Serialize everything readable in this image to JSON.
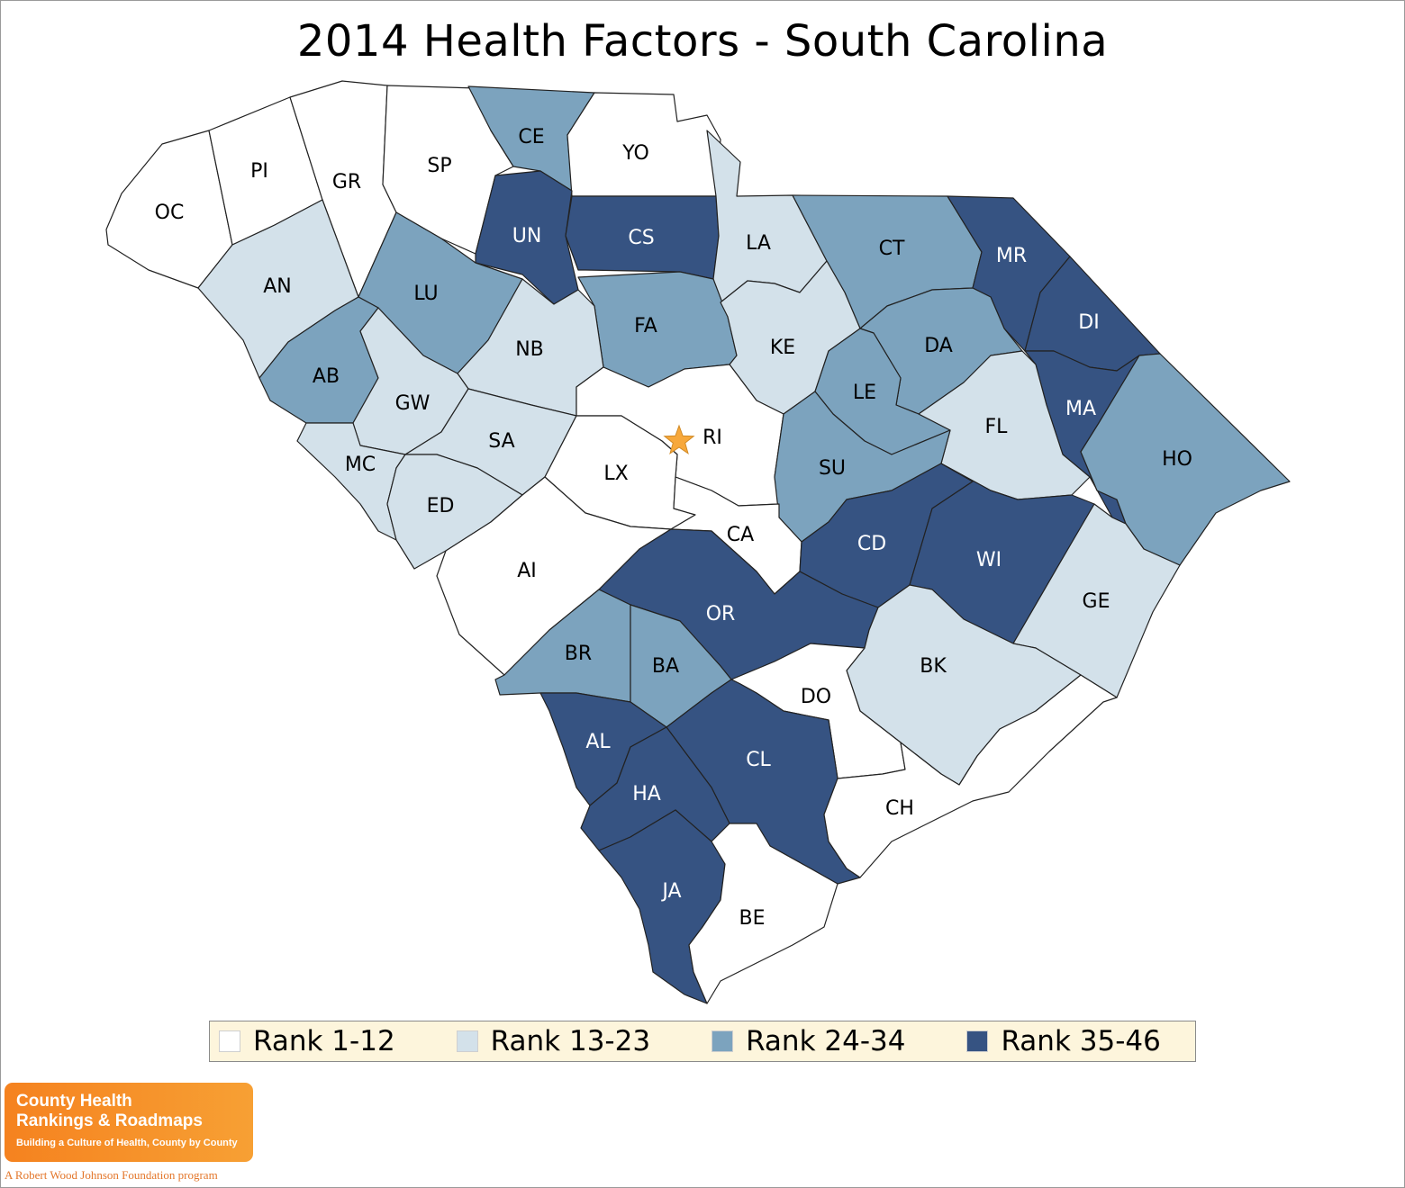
{
  "title": "2014 Health Factors - South Carolina",
  "colors": {
    "rank_1": "#ffffff",
    "rank_2": "#d3e1ea",
    "rank_3": "#7ca3be",
    "rank_4": "#365382",
    "border": "#222222",
    "star": "#f7a83b"
  },
  "legend": [
    {
      "label": "Rank 1-12",
      "color": "#ffffff"
    },
    {
      "label": "Rank 13-23",
      "color": "#d3e1ea"
    },
    {
      "label": "Rank 24-34",
      "color": "#7ca3be"
    },
    {
      "label": "Rank 35-46",
      "color": "#365382"
    }
  ],
  "capital": {
    "county": "RI",
    "marker": "star-icon"
  },
  "counties": [
    {
      "code": "OC",
      "tier": 1
    },
    {
      "code": "PI",
      "tier": 1
    },
    {
      "code": "GR",
      "tier": 1
    },
    {
      "code": "SP",
      "tier": 1
    },
    {
      "code": "CE",
      "tier": 3
    },
    {
      "code": "YO",
      "tier": 1
    },
    {
      "code": "UN",
      "tier": 4
    },
    {
      "code": "CS",
      "tier": 4
    },
    {
      "code": "LA",
      "tier": 2
    },
    {
      "code": "CT",
      "tier": 3
    },
    {
      "code": "MR",
      "tier": 4
    },
    {
      "code": "AN",
      "tier": 2
    },
    {
      "code": "LU",
      "tier": 3
    },
    {
      "code": "FA",
      "tier": 3
    },
    {
      "code": "KE",
      "tier": 2
    },
    {
      "code": "DI",
      "tier": 4
    },
    {
      "code": "DA",
      "tier": 3
    },
    {
      "code": "NB",
      "tier": 2
    },
    {
      "code": "AB",
      "tier": 3
    },
    {
      "code": "GW",
      "tier": 2
    },
    {
      "code": "LE",
      "tier": 3
    },
    {
      "code": "MA",
      "tier": 4
    },
    {
      "code": "FL",
      "tier": 2
    },
    {
      "code": "RI",
      "tier": 1
    },
    {
      "code": "SA",
      "tier": 2
    },
    {
      "code": "MC",
      "tier": 2
    },
    {
      "code": "HO",
      "tier": 3
    },
    {
      "code": "LX",
      "tier": 1
    },
    {
      "code": "SU",
      "tier": 3
    },
    {
      "code": "ED",
      "tier": 2
    },
    {
      "code": "CA",
      "tier": 1
    },
    {
      "code": "CD",
      "tier": 4
    },
    {
      "code": "WI",
      "tier": 4
    },
    {
      "code": "AI",
      "tier": 1
    },
    {
      "code": "GE",
      "tier": 2
    },
    {
      "code": "OR",
      "tier": 4
    },
    {
      "code": "BR",
      "tier": 3
    },
    {
      "code": "BA",
      "tier": 3
    },
    {
      "code": "BK",
      "tier": 2
    },
    {
      "code": "DO",
      "tier": 1
    },
    {
      "code": "AL",
      "tier": 4
    },
    {
      "code": "CL",
      "tier": 4
    },
    {
      "code": "HA",
      "tier": 4
    },
    {
      "code": "CH",
      "tier": 1
    },
    {
      "code": "JA",
      "tier": 4
    },
    {
      "code": "BE",
      "tier": 1
    }
  ],
  "logo": {
    "line1": "County Health",
    "line2": "Rankings & Roadmaps",
    "tagline": "Building a Culture of Health, County by County",
    "footer": "A Robert Wood Johnson Foundation program"
  }
}
